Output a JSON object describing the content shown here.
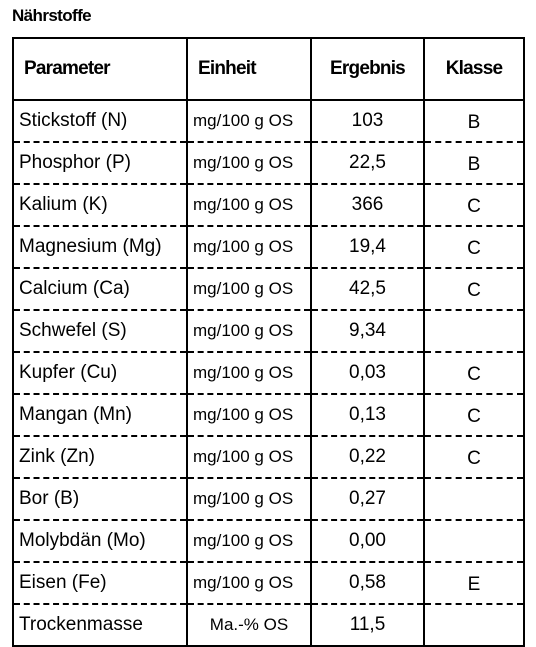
{
  "title": "Nährstoffe",
  "headers": {
    "parameter": "Parameter",
    "einheit": "Einheit",
    "ergebnis": "Ergebnis",
    "klasse": "Klasse"
  },
  "rows": [
    {
      "parameter": "Stickstoff (N)",
      "einheit": "mg/100 g OS",
      "ergebnis": "103",
      "klasse": "B"
    },
    {
      "parameter": "Phosphor (P)",
      "einheit": "mg/100 g OS",
      "ergebnis": "22,5",
      "klasse": "B"
    },
    {
      "parameter": "Kalium (K)",
      "einheit": "mg/100 g OS",
      "ergebnis": "366",
      "klasse": "C"
    },
    {
      "parameter": "Magnesium (Mg)",
      "einheit": "mg/100 g OS",
      "ergebnis": "19,4",
      "klasse": "C"
    },
    {
      "parameter": "Calcium (Ca)",
      "einheit": "mg/100 g OS",
      "ergebnis": "42,5",
      "klasse": "C"
    },
    {
      "parameter": "Schwefel (S)",
      "einheit": "mg/100 g OS",
      "ergebnis": "9,34",
      "klasse": ""
    },
    {
      "parameter": "Kupfer (Cu)",
      "einheit": "mg/100 g OS",
      "ergebnis": "0,03",
      "klasse": "C"
    },
    {
      "parameter": "Mangan (Mn)",
      "einheit": "mg/100 g OS",
      "ergebnis": "0,13",
      "klasse": "C"
    },
    {
      "parameter": "Zink (Zn)",
      "einheit": "mg/100 g OS",
      "ergebnis": "0,22",
      "klasse": "C"
    },
    {
      "parameter": "Bor (B)",
      "einheit": "mg/100 g OS",
      "ergebnis": "0,27",
      "klasse": ""
    },
    {
      "parameter": "Molybdän (Mo)",
      "einheit": "mg/100 g OS",
      "ergebnis": "0,00",
      "klasse": ""
    },
    {
      "parameter": "Eisen (Fe)",
      "einheit": "mg/100 g OS",
      "ergebnis": "0,58",
      "klasse": "E"
    },
    {
      "parameter": "Trockenmasse",
      "einheit": "Ma.-% OS",
      "ergebnis": "11,5",
      "klasse": ""
    }
  ]
}
